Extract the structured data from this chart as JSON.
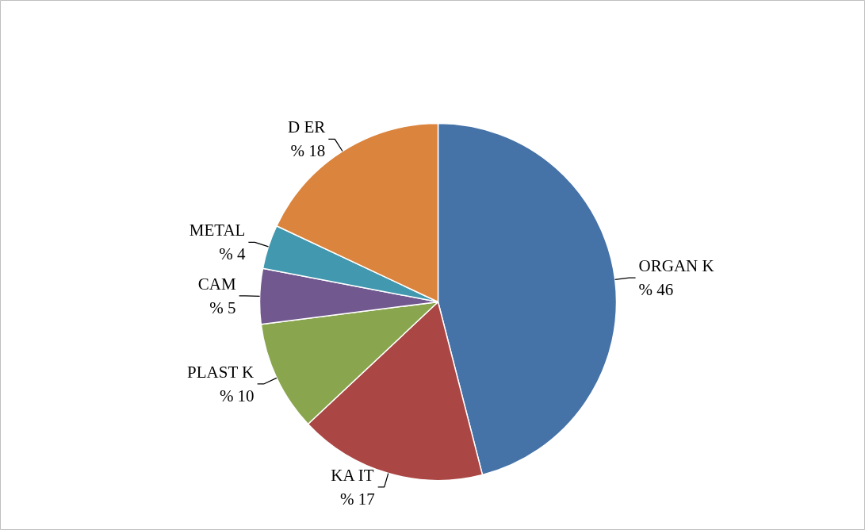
{
  "chart_data": {
    "type": "pie",
    "categories": [
      "ORGAN K",
      "KA IT",
      "PLAST K",
      "CAM",
      "METAL",
      "D ER"
    ],
    "values": [
      46,
      17,
      10,
      5,
      4,
      18
    ],
    "value_labels": [
      "% 46",
      "% 17",
      "% 10",
      "% 5",
      "% 4",
      "% 18"
    ],
    "colors": [
      "#4572a7",
      "#aa4643",
      "#89a54e",
      "#71588f",
      "#4198af",
      "#db843d"
    ]
  }
}
